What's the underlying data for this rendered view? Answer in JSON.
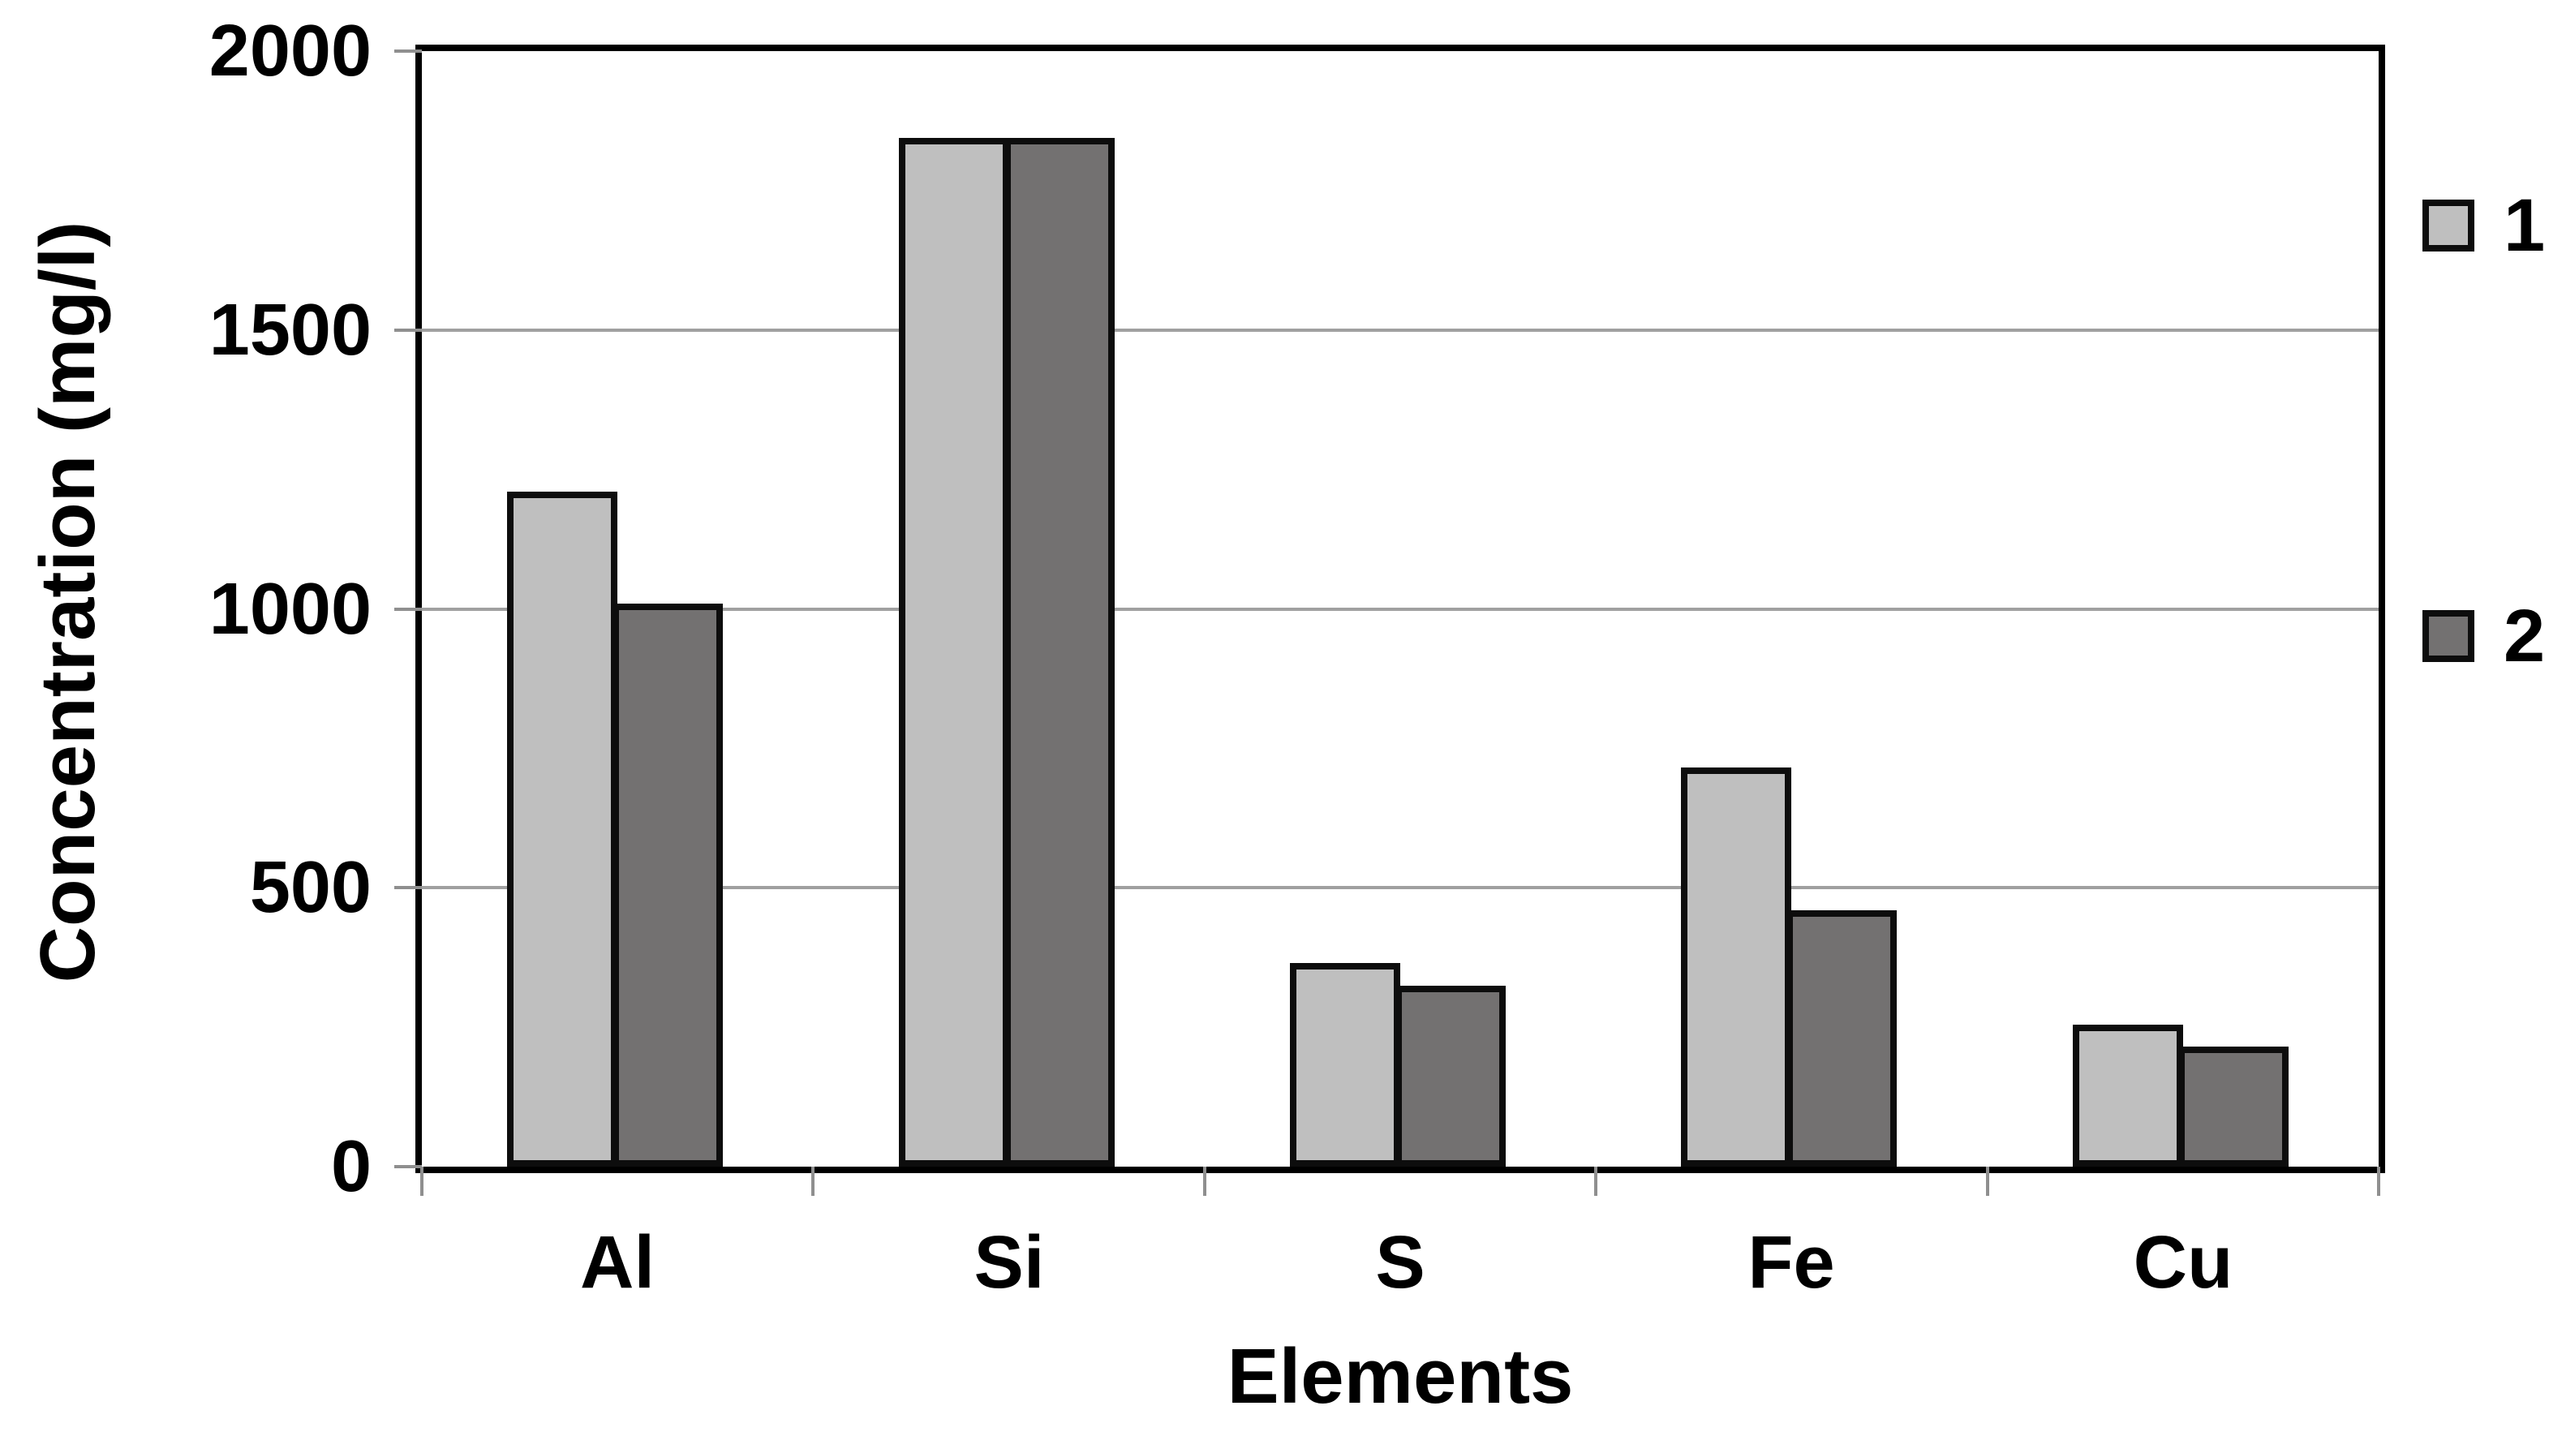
{
  "chart_data": {
    "type": "bar",
    "title": "",
    "xlabel": "Elements",
    "ylabel": "Concentration (mg/l)",
    "categories": [
      "Al",
      "Si",
      "S",
      "Fe",
      "Cu"
    ],
    "series": [
      {
        "name": "1",
        "color": "#bfbfbf",
        "values": [
          1210,
          1845,
          365,
          715,
          255
        ]
      },
      {
        "name": "2",
        "color": "#737171",
        "values": [
          1010,
          1845,
          325,
          460,
          215
        ]
      }
    ],
    "ylim": [
      0,
      2000
    ],
    "yticks": [
      0,
      500,
      1000,
      1500,
      2000
    ],
    "grid": true,
    "legend_position": "right",
    "legend_labels": [
      "1",
      "2"
    ],
    "colors": {
      "bar_fill_series1": "#bfbfbf",
      "bar_fill_series2": "#737171",
      "bar_border": "#0d0d0d",
      "gridline": "#a0a0a0",
      "tick_mark": "#8f8f8f",
      "axis_border": "#000000",
      "text": "#000000",
      "background": "#ffffff"
    }
  }
}
